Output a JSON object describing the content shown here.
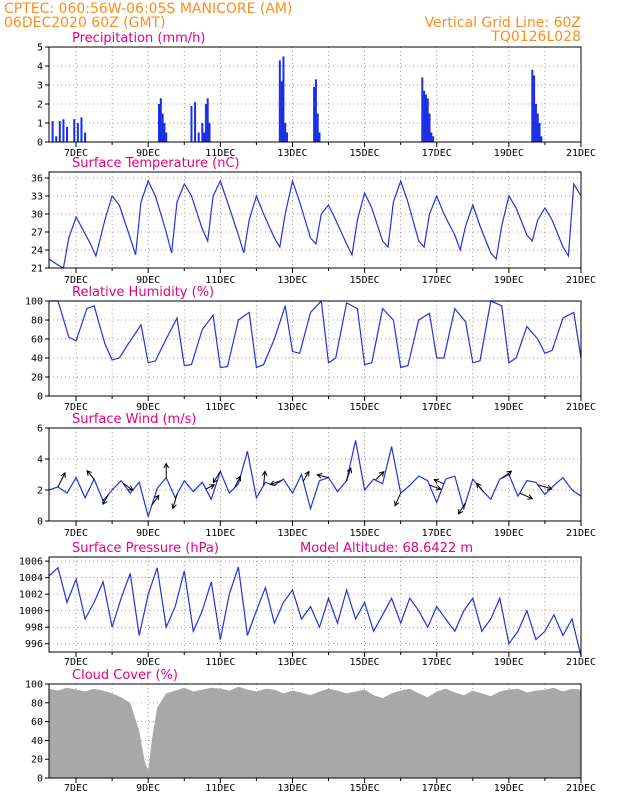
{
  "header": {
    "line1_left": "CPTEC:  060:56W-06:05S  MANICORE (AM)",
    "line2_left": "06DEC2020 60Z (GMT)",
    "line2_right": "Vertical Grid Line: 60Z",
    "line3_right": "TQ0126L028"
  },
  "colors": {
    "series": "#2233dd",
    "bars": "#1a2ee6",
    "cloud": "#a8a8a8",
    "header": "#ff8c1a",
    "titles": "#e6007e"
  },
  "x_ticks": [
    "7DEC",
    "9DEC",
    "11DEC",
    "13DEC",
    "15DEC",
    "17DEC",
    "19DEC",
    "21DEC"
  ],
  "chart_data": [
    {
      "id": "precip",
      "type": "bar",
      "title": "Precipitation (mm/h)",
      "ylim": [
        0,
        5
      ],
      "yticks": [
        0,
        1,
        2,
        3,
        4,
        5
      ],
      "xlim": [
        6.25,
        21.0
      ],
      "x": [
        6.35,
        6.45,
        6.55,
        6.65,
        6.75,
        6.95,
        7.05,
        7.15,
        7.25,
        9.3,
        9.35,
        9.4,
        9.45,
        9.5,
        10.2,
        10.3,
        10.4,
        10.5,
        10.55,
        10.6,
        10.65,
        10.7,
        12.65,
        12.7,
        12.75,
        12.8,
        12.85,
        13.6,
        13.65,
        13.7,
        13.75,
        16.6,
        16.65,
        16.7,
        16.75,
        16.8,
        16.85,
        16.9,
        19.65,
        19.7,
        19.75,
        19.8,
        19.85,
        19.9
      ],
      "values": [
        1.1,
        0.3,
        1.1,
        1.2,
        0.8,
        1.2,
        1.0,
        1.3,
        0.5,
        2.0,
        2.3,
        1.5,
        1.0,
        0.5,
        1.9,
        2.1,
        0.5,
        1.0,
        0.5,
        2.0,
        2.3,
        1.0,
        4.3,
        3.2,
        4.5,
        1.0,
        0.5,
        2.9,
        3.3,
        1.5,
        0.5,
        3.4,
        2.7,
        2.5,
        2.3,
        1.5,
        0.5,
        0.3,
        3.8,
        3.5,
        2.0,
        1.5,
        1.0,
        0.3
      ]
    },
    {
      "id": "temp",
      "type": "line",
      "title": "Surface Temperature (nC)",
      "ylim": [
        21,
        37
      ],
      "yticks": [
        21,
        24,
        27,
        30,
        33,
        36
      ],
      "xlim": [
        6.25,
        21.0
      ],
      "x": [
        6.25,
        6.5,
        6.65,
        6.8,
        7.0,
        7.4,
        7.55,
        7.8,
        8.0,
        8.2,
        8.5,
        8.65,
        8.8,
        9.0,
        9.2,
        9.5,
        9.65,
        9.8,
        10.0,
        10.2,
        10.5,
        10.65,
        10.8,
        11.0,
        11.2,
        11.5,
        11.65,
        11.8,
        12.0,
        12.2,
        12.5,
        12.65,
        12.8,
        13.0,
        13.2,
        13.5,
        13.65,
        13.8,
        14.0,
        14.2,
        14.5,
        14.65,
        14.8,
        15.0,
        15.2,
        15.5,
        15.65,
        15.8,
        16.0,
        16.2,
        16.5,
        16.65,
        16.8,
        17.0,
        17.2,
        17.5,
        17.65,
        17.8,
        18.0,
        18.2,
        18.5,
        18.65,
        18.8,
        19.0,
        19.2,
        19.5,
        19.65,
        19.8,
        20.0,
        20.2,
        20.5,
        20.65,
        20.8,
        21.0
      ],
      "values": [
        22.5,
        21.5,
        21.0,
        26.0,
        29.5,
        25.0,
        23.0,
        29.0,
        33.0,
        31.5,
        26.0,
        23.2,
        32.0,
        35.5,
        33.0,
        27.0,
        23.5,
        32.0,
        35.0,
        33.0,
        27.5,
        25.5,
        33.0,
        35.5,
        32.0,
        26.5,
        23.5,
        29.0,
        33.0,
        30.0,
        26.0,
        24.5,
        30.0,
        35.5,
        32.0,
        26.0,
        25.0,
        30.0,
        31.5,
        29.0,
        25.0,
        23.2,
        29.0,
        33.5,
        31.0,
        25.5,
        24.5,
        32.0,
        35.5,
        32.0,
        25.5,
        24.5,
        30.0,
        33.0,
        30.0,
        26.5,
        24.0,
        28.0,
        31.5,
        28.0,
        23.5,
        22.5,
        28.0,
        33.0,
        31.0,
        26.5,
        25.5,
        29.0,
        31.0,
        29.0,
        24.5,
        23.0,
        35.0,
        33.0
      ]
    },
    {
      "id": "rh",
      "type": "line",
      "title": "Relative Humidity (%)",
      "ylim": [
        0,
        100
      ],
      "yticks": [
        0,
        20,
        40,
        60,
        80,
        100
      ],
      "xlim": [
        6.25,
        21.0
      ],
      "x": [
        6.25,
        6.5,
        6.8,
        7.0,
        7.3,
        7.5,
        7.8,
        8.0,
        8.2,
        8.5,
        8.8,
        9.0,
        9.2,
        9.5,
        9.8,
        10.0,
        10.2,
        10.5,
        10.8,
        11.0,
        11.2,
        11.5,
        11.8,
        12.0,
        12.2,
        12.5,
        12.8,
        13.0,
        13.2,
        13.5,
        13.8,
        14.0,
        14.2,
        14.5,
        14.8,
        15.0,
        15.2,
        15.5,
        15.8,
        16.0,
        16.2,
        16.5,
        16.8,
        17.0,
        17.2,
        17.5,
        17.8,
        18.0,
        18.2,
        18.5,
        18.8,
        19.0,
        19.2,
        19.5,
        19.8,
        20.0,
        20.2,
        20.5,
        20.8,
        21.0
      ],
      "values": [
        100,
        100,
        62,
        58,
        92,
        95,
        55,
        38,
        40,
        58,
        75,
        35,
        37,
        60,
        82,
        32,
        33,
        70,
        85,
        30,
        31,
        80,
        88,
        30,
        33,
        60,
        95,
        47,
        45,
        88,
        100,
        35,
        40,
        98,
        92,
        33,
        35,
        92,
        80,
        30,
        32,
        80,
        87,
        40,
        40,
        92,
        78,
        35,
        37,
        100,
        95,
        35,
        40,
        73,
        60,
        45,
        48,
        82,
        88,
        40
      ]
    },
    {
      "id": "wind",
      "type": "line",
      "title": "Surface Wind (m/s)",
      "ylim": [
        0,
        6
      ],
      "yticks": [
        0,
        2,
        4,
        6
      ],
      "xlim": [
        6.25,
        21.0
      ],
      "x": [
        6.25,
        6.5,
        6.75,
        7.0,
        7.25,
        7.5,
        7.75,
        8.0,
        8.25,
        8.5,
        8.75,
        9.0,
        9.25,
        9.5,
        9.75,
        10.0,
        10.25,
        10.5,
        10.75,
        11.0,
        11.25,
        11.5,
        11.75,
        12.0,
        12.25,
        12.5,
        12.75,
        13.0,
        13.25,
        13.5,
        13.75,
        14.0,
        14.25,
        14.5,
        14.75,
        15.0,
        15.25,
        15.5,
        15.75,
        16.0,
        16.25,
        16.5,
        16.75,
        17.0,
        17.25,
        17.5,
        17.75,
        18.0,
        18.25,
        18.5,
        18.75,
        19.0,
        19.25,
        19.5,
        19.75,
        20.0,
        20.25,
        20.5,
        20.75,
        21.0
      ],
      "values": [
        2.0,
        2.2,
        1.8,
        2.8,
        1.5,
        2.7,
        1.3,
        2.0,
        2.6,
        1.8,
        2.5,
        0.3,
        2.1,
        2.8,
        1.5,
        2.6,
        1.9,
        2.5,
        1.4,
        3.2,
        1.8,
        2.4,
        4.5,
        1.5,
        2.5,
        2.3,
        2.7,
        1.8,
        3.0,
        0.8,
        2.6,
        2.8,
        1.9,
        2.6,
        5.2,
        2.0,
        2.7,
        2.4,
        4.8,
        1.8,
        2.3,
        2.9,
        2.6,
        1.2,
        2.7,
        2.9,
        0.8,
        2.7,
        2.0,
        1.4,
        2.7,
        3.0,
        1.6,
        2.6,
        2.5,
        1.7,
        2.3,
        2.8,
        2.0,
        1.6
      ],
      "arrows": [
        {
          "x": 6.5,
          "u": 0.5,
          "v": 1.0
        },
        {
          "x": 7.5,
          "u": -0.5,
          "v": 0.6
        },
        {
          "x": 7.9,
          "u": -0.4,
          "v": -0.7
        },
        {
          "x": 8.3,
          "u": 0.7,
          "v": -0.5
        },
        {
          "x": 9.1,
          "u": 0.5,
          "v": 0.7
        },
        {
          "x": 9.5,
          "u": 0.0,
          "v": 1.0
        },
        {
          "x": 9.8,
          "u": -0.3,
          "v": -1.0
        },
        {
          "x": 10.6,
          "u": 0.6,
          "v": 0.3
        },
        {
          "x": 11.0,
          "u": -0.5,
          "v": -0.8
        },
        {
          "x": 11.4,
          "u": 0.4,
          "v": 0.8
        },
        {
          "x": 12.2,
          "u": 0.1,
          "v": 1.0
        },
        {
          "x": 12.7,
          "u": -0.8,
          "v": -0.3
        },
        {
          "x": 13.3,
          "u": 0.4,
          "v": 0.7
        },
        {
          "x": 14.0,
          "u": -0.8,
          "v": 0.2
        },
        {
          "x": 14.5,
          "u": 0.3,
          "v": 0.9
        },
        {
          "x": 15.3,
          "u": 0.6,
          "v": 0.6
        },
        {
          "x": 16.0,
          "u": -0.4,
          "v": -0.9
        },
        {
          "x": 16.8,
          "u": 0.8,
          "v": -0.3
        },
        {
          "x": 17.2,
          "u": -0.7,
          "v": 0.3
        },
        {
          "x": 17.8,
          "u": -0.5,
          "v": -0.8
        },
        {
          "x": 18.3,
          "u": -0.5,
          "v": 0.6
        },
        {
          "x": 18.8,
          "u": 0.7,
          "v": 0.5
        },
        {
          "x": 19.3,
          "u": 0.9,
          "v": -0.4
        },
        {
          "x": 19.8,
          "u": 1.0,
          "v": -0.3
        }
      ]
    },
    {
      "id": "pressure",
      "type": "line",
      "title": "Surface Pressure (hPa)",
      "note": "Model Altitude: 68.6422 m",
      "ylim": [
        995,
        1006.5
      ],
      "yticks": [
        996,
        998,
        1000,
        1002,
        1004,
        1006
      ],
      "xlim": [
        6.25,
        21.0
      ],
      "x": [
        6.25,
        6.5,
        6.75,
        7.0,
        7.25,
        7.5,
        7.75,
        8.0,
        8.25,
        8.5,
        8.75,
        9.0,
        9.25,
        9.5,
        9.75,
        10.0,
        10.25,
        10.5,
        10.75,
        11.0,
        11.25,
        11.5,
        11.75,
        12.0,
        12.25,
        12.5,
        12.75,
        13.0,
        13.25,
        13.5,
        13.75,
        14.0,
        14.25,
        14.5,
        14.75,
        15.0,
        15.25,
        15.5,
        15.75,
        16.0,
        16.25,
        16.5,
        16.75,
        17.0,
        17.25,
        17.5,
        17.75,
        18.0,
        18.25,
        18.5,
        18.75,
        19.0,
        19.25,
        19.5,
        19.75,
        20.0,
        20.25,
        20.5,
        20.75,
        21.0
      ],
      "values": [
        1004.2,
        1005.2,
        1001.0,
        1003.8,
        999.0,
        1001.0,
        1003.5,
        998.0,
        1001.5,
        1004.5,
        997.0,
        1002.0,
        1005.2,
        998.0,
        1000.5,
        1004.8,
        997.5,
        1000.0,
        1003.5,
        996.5,
        1002.0,
        1005.3,
        997.0,
        1000.0,
        1002.8,
        998.5,
        1001.0,
        1002.5,
        999.0,
        1000.5,
        998.0,
        1001.5,
        998.5,
        1002.5,
        999.0,
        1001.0,
        997.5,
        999.5,
        1001.5,
        998.5,
        1001.5,
        1000.0,
        998.0,
        1000.5,
        999.0,
        997.5,
        1000.0,
        1001.5,
        997.5,
        999.0,
        1001.5,
        996.0,
        997.5,
        1000.0,
        996.5,
        997.5,
        999.5,
        997.0,
        999.0,
        994.5
      ]
    },
    {
      "id": "cloud",
      "type": "area",
      "title": "Cloud Cover (%)",
      "ylim": [
        0,
        100
      ],
      "yticks": [
        0,
        20,
        40,
        60,
        80,
        100
      ],
      "xlim": [
        6.25,
        21.0
      ],
      "x": [
        6.25,
        6.5,
        6.75,
        7.0,
        7.25,
        7.5,
        7.75,
        8.0,
        8.25,
        8.5,
        8.75,
        8.9,
        9.0,
        9.1,
        9.25,
        9.5,
        9.75,
        10.0,
        10.25,
        10.5,
        10.75,
        11.0,
        11.25,
        11.5,
        11.75,
        12.0,
        12.25,
        12.5,
        12.75,
        13.0,
        13.25,
        13.5,
        13.75,
        14.0,
        14.25,
        14.5,
        14.75,
        15.0,
        15.25,
        15.5,
        15.75,
        16.0,
        16.25,
        16.5,
        16.75,
        17.0,
        17.25,
        17.5,
        17.75,
        18.0,
        18.25,
        18.5,
        18.75,
        19.0,
        19.25,
        19.5,
        19.75,
        20.0,
        20.25,
        20.5,
        20.75,
        21.0
      ],
      "values": [
        95,
        93,
        96,
        94,
        92,
        95,
        93,
        90,
        86,
        80,
        50,
        18,
        8,
        40,
        75,
        90,
        93,
        96,
        92,
        94,
        96,
        95,
        93,
        97,
        94,
        92,
        95,
        94,
        90,
        93,
        91,
        88,
        92,
        95,
        93,
        90,
        92,
        94,
        88,
        85,
        90,
        93,
        95,
        90,
        86,
        92,
        95,
        91,
        88,
        93,
        90,
        87,
        92,
        94,
        95,
        91,
        93,
        94,
        96,
        92,
        95,
        94
      ]
    }
  ]
}
